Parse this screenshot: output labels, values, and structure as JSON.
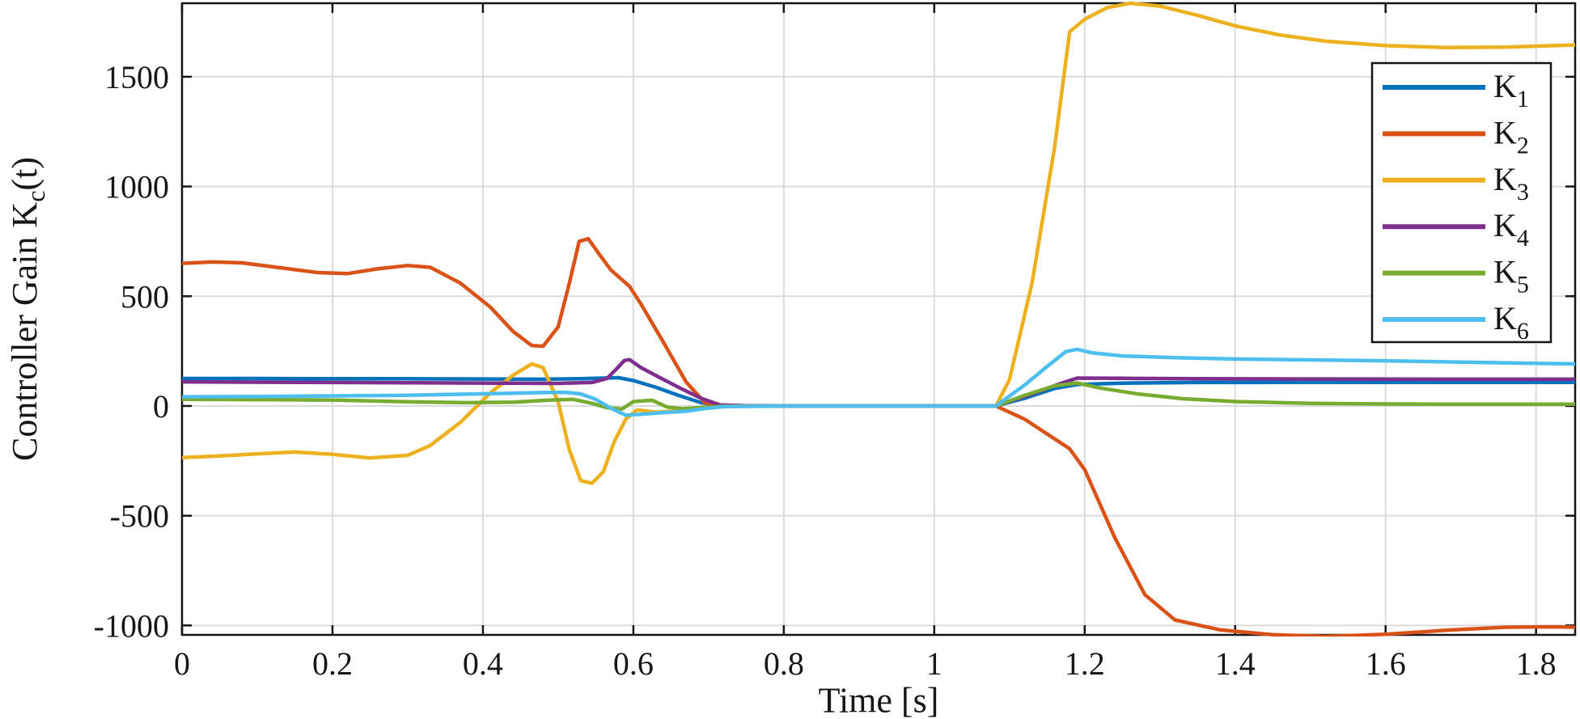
{
  "figure": {
    "xlabel": "Time [s]",
    "ylabel_prefix": "Controller Gain K",
    "ylabel_sub": "c",
    "ylabel_suffix": "(t)"
  },
  "chart_data": {
    "type": "line",
    "title": "",
    "xlabel": "Time [s]",
    "ylabel": "Controller Gain K_c(t)",
    "xlim": [
      0,
      1.852
    ],
    "ylim": [
      -1043,
      1835
    ],
    "grid": true,
    "legend_position": "northeast",
    "colors": {
      "grid": "#dbdbdb",
      "axis": "#151515",
      "background": "#ffffff"
    },
    "xticks": {
      "values": [
        0,
        0.2,
        0.4,
        0.6,
        0.8,
        1,
        1.2,
        1.4,
        1.6,
        1.8
      ],
      "labels": [
        "0",
        "0.2",
        "0.4",
        "0.6",
        "0.8",
        "1",
        "1.2",
        "1.4",
        "1.6",
        "1.8"
      ]
    },
    "yticks": {
      "values": [
        -1000,
        -500,
        0,
        500,
        1000,
        1500
      ],
      "labels": [
        "-1000",
        "-500",
        "0",
        "500",
        "1000",
        "1500"
      ]
    },
    "series": [
      {
        "name": "K_1",
        "label_base": "K",
        "label_sub": "1",
        "color": "#0072BD",
        "points": [
          [
            0,
            125
          ],
          [
            0.1,
            125
          ],
          [
            0.2,
            124
          ],
          [
            0.3,
            124
          ],
          [
            0.4,
            123
          ],
          [
            0.48,
            122
          ],
          [
            0.53,
            124
          ],
          [
            0.56,
            127
          ],
          [
            0.58,
            129
          ],
          [
            0.6,
            116
          ],
          [
            0.63,
            85
          ],
          [
            0.66,
            48
          ],
          [
            0.69,
            15
          ],
          [
            0.715,
            2
          ],
          [
            0.75,
            1
          ],
          [
            0.9,
            1
          ],
          [
            1.082,
            1
          ],
          [
            1.12,
            35
          ],
          [
            1.16,
            80
          ],
          [
            1.19,
            98
          ],
          [
            1.25,
            104
          ],
          [
            1.35,
            107
          ],
          [
            1.5,
            108
          ],
          [
            1.7,
            108
          ],
          [
            1.852,
            108
          ]
        ]
      },
      {
        "name": "K_2",
        "label_base": "K",
        "label_sub": "2",
        "color": "#D95319",
        "points": [
          [
            0,
            650
          ],
          [
            0.04,
            656
          ],
          [
            0.08,
            652
          ],
          [
            0.13,
            630
          ],
          [
            0.18,
            608
          ],
          [
            0.22,
            603
          ],
          [
            0.26,
            625
          ],
          [
            0.3,
            640
          ],
          [
            0.33,
            632
          ],
          [
            0.37,
            560
          ],
          [
            0.41,
            450
          ],
          [
            0.44,
            340
          ],
          [
            0.465,
            275
          ],
          [
            0.48,
            272
          ],
          [
            0.5,
            360
          ],
          [
            0.515,
            560
          ],
          [
            0.528,
            750
          ],
          [
            0.54,
            762
          ],
          [
            0.555,
            690
          ],
          [
            0.57,
            620
          ],
          [
            0.585,
            575
          ],
          [
            0.595,
            545
          ],
          [
            0.61,
            465
          ],
          [
            0.64,
            290
          ],
          [
            0.67,
            110
          ],
          [
            0.695,
            15
          ],
          [
            0.72,
            1
          ],
          [
            0.8,
            0
          ],
          [
            1.0,
            0
          ],
          [
            1.082,
            0
          ],
          [
            1.12,
            -60
          ],
          [
            1.18,
            -195
          ],
          [
            1.2,
            -290
          ],
          [
            1.24,
            -600
          ],
          [
            1.28,
            -860
          ],
          [
            1.32,
            -975
          ],
          [
            1.38,
            -1020
          ],
          [
            1.45,
            -1042
          ],
          [
            1.52,
            -1050
          ],
          [
            1.6,
            -1040
          ],
          [
            1.68,
            -1022
          ],
          [
            1.76,
            -1008
          ],
          [
            1.82,
            -1006
          ],
          [
            1.852,
            -1008
          ]
        ]
      },
      {
        "name": "K_3",
        "label_base": "K",
        "label_sub": "3",
        "color": "#EDB120",
        "points": [
          [
            0,
            -235
          ],
          [
            0.05,
            -228
          ],
          [
            0.1,
            -218
          ],
          [
            0.15,
            -210
          ],
          [
            0.2,
            -220
          ],
          [
            0.25,
            -237
          ],
          [
            0.3,
            -225
          ],
          [
            0.33,
            -180
          ],
          [
            0.37,
            -75
          ],
          [
            0.41,
            60
          ],
          [
            0.44,
            140
          ],
          [
            0.465,
            192
          ],
          [
            0.48,
            175
          ],
          [
            0.5,
            20
          ],
          [
            0.515,
            -200
          ],
          [
            0.53,
            -340
          ],
          [
            0.545,
            -352
          ],
          [
            0.56,
            -300
          ],
          [
            0.575,
            -160
          ],
          [
            0.59,
            -60
          ],
          [
            0.605,
            -18
          ],
          [
            0.63,
            -28
          ],
          [
            0.66,
            -22
          ],
          [
            0.69,
            -8
          ],
          [
            0.72,
            -2
          ],
          [
            0.8,
            0
          ],
          [
            1.0,
            0
          ],
          [
            1.082,
            0
          ],
          [
            1.1,
            120
          ],
          [
            1.13,
            560
          ],
          [
            1.16,
            1180
          ],
          [
            1.18,
            1705
          ],
          [
            1.2,
            1762
          ],
          [
            1.23,
            1815
          ],
          [
            1.26,
            1835
          ],
          [
            1.3,
            1822
          ],
          [
            1.35,
            1780
          ],
          [
            1.4,
            1732
          ],
          [
            1.46,
            1690
          ],
          [
            1.52,
            1662
          ],
          [
            1.6,
            1642
          ],
          [
            1.68,
            1633
          ],
          [
            1.76,
            1635
          ],
          [
            1.852,
            1645
          ]
        ]
      },
      {
        "name": "K_4",
        "label_base": "K",
        "label_sub": "4",
        "color": "#7E2F8E",
        "points": [
          [
            0,
            110
          ],
          [
            0.15,
            108
          ],
          [
            0.3,
            106
          ],
          [
            0.42,
            104
          ],
          [
            0.5,
            103
          ],
          [
            0.545,
            107
          ],
          [
            0.565,
            125
          ],
          [
            0.578,
            170
          ],
          [
            0.588,
            207
          ],
          [
            0.595,
            211
          ],
          [
            0.61,
            175
          ],
          [
            0.635,
            130
          ],
          [
            0.66,
            85
          ],
          [
            0.69,
            35
          ],
          [
            0.715,
            5
          ],
          [
            0.75,
            1
          ],
          [
            1.0,
            1
          ],
          [
            1.082,
            1
          ],
          [
            1.13,
            55
          ],
          [
            1.17,
            105
          ],
          [
            1.19,
            127
          ],
          [
            1.25,
            126
          ],
          [
            1.35,
            124
          ],
          [
            1.5,
            123
          ],
          [
            1.7,
            122
          ],
          [
            1.852,
            122
          ]
        ]
      },
      {
        "name": "K_5",
        "label_base": "K",
        "label_sub": "5",
        "color": "#77AC30",
        "points": [
          [
            0,
            30
          ],
          [
            0.1,
            29
          ],
          [
            0.2,
            27
          ],
          [
            0.3,
            19
          ],
          [
            0.38,
            15
          ],
          [
            0.44,
            17
          ],
          [
            0.49,
            27
          ],
          [
            0.52,
            30
          ],
          [
            0.545,
            12
          ],
          [
            0.565,
            -8
          ],
          [
            0.585,
            -14
          ],
          [
            0.6,
            20
          ],
          [
            0.625,
            26
          ],
          [
            0.645,
            -5
          ],
          [
            0.665,
            -13
          ],
          [
            0.69,
            -7
          ],
          [
            0.72,
            -1
          ],
          [
            0.8,
            0
          ],
          [
            1.0,
            0
          ],
          [
            1.082,
            0
          ],
          [
            1.12,
            48
          ],
          [
            1.16,
            92
          ],
          [
            1.19,
            105
          ],
          [
            1.22,
            82
          ],
          [
            1.27,
            55
          ],
          [
            1.33,
            33
          ],
          [
            1.4,
            20
          ],
          [
            1.5,
            12
          ],
          [
            1.6,
            9
          ],
          [
            1.7,
            8
          ],
          [
            1.852,
            8
          ]
        ]
      },
      {
        "name": "K_6",
        "label_base": "K",
        "label_sub": "6",
        "color": "#4DBEEE",
        "points": [
          [
            0,
            42
          ],
          [
            0.1,
            43
          ],
          [
            0.2,
            46
          ],
          [
            0.3,
            49
          ],
          [
            0.38,
            54
          ],
          [
            0.44,
            58
          ],
          [
            0.48,
            61
          ],
          [
            0.51,
            62
          ],
          [
            0.53,
            55
          ],
          [
            0.55,
            30
          ],
          [
            0.57,
            -10
          ],
          [
            0.59,
            -42
          ],
          [
            0.61,
            -38
          ],
          [
            0.64,
            -30
          ],
          [
            0.67,
            -24
          ],
          [
            0.695,
            -12
          ],
          [
            0.72,
            -3
          ],
          [
            0.8,
            0
          ],
          [
            1.0,
            0
          ],
          [
            1.082,
            0
          ],
          [
            1.12,
            95
          ],
          [
            1.15,
            180
          ],
          [
            1.175,
            248
          ],
          [
            1.19,
            258
          ],
          [
            1.21,
            242
          ],
          [
            1.25,
            228
          ],
          [
            1.32,
            220
          ],
          [
            1.4,
            214
          ],
          [
            1.5,
            210
          ],
          [
            1.6,
            206
          ],
          [
            1.7,
            200
          ],
          [
            1.8,
            194
          ],
          [
            1.852,
            192
          ]
        ]
      }
    ]
  }
}
